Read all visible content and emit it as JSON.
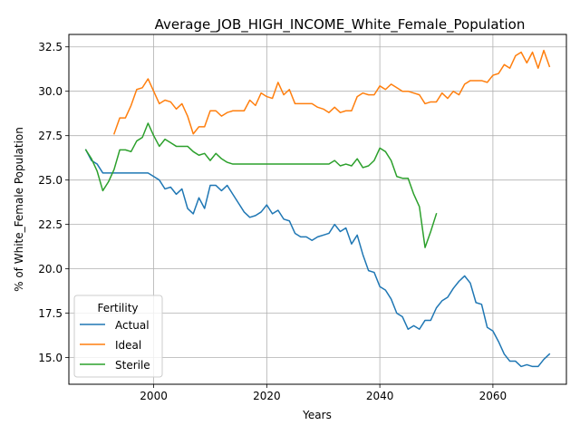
{
  "chart_data": {
    "type": "line",
    "title": "Average_JOB_HIGH_INCOME_White_Female_Population",
    "xlabel": "Years",
    "ylabel": "% of White_Female Population",
    "xlim": [
      1985,
      2073
    ],
    "ylim": [
      13.5,
      33.2
    ],
    "x_ticks": [
      2000,
      2020,
      2040,
      2060
    ],
    "y_ticks": [
      15.0,
      17.5,
      20.0,
      22.5,
      25.0,
      27.5,
      30.0,
      32.5
    ],
    "x_tick_labels": [
      "2000",
      "2020",
      "2040",
      "2060"
    ],
    "y_tick_labels": [
      "15.0",
      "17.5",
      "20.0",
      "22.5",
      "25.0",
      "27.5",
      "30.0",
      "32.5"
    ],
    "grid": true,
    "legend": {
      "title": "Fertility",
      "position": "bottom-left"
    },
    "series": [
      {
        "name": "Actual",
        "color": "#1f77b4",
        "x": [
          1988,
          1989,
          1990,
          1991,
          1992,
          1993,
          1994,
          1995,
          1996,
          1997,
          1998,
          1999,
          2000,
          2001,
          2002,
          2003,
          2004,
          2005,
          2006,
          2007,
          2008,
          2009,
          2010,
          2011,
          2012,
          2013,
          2014,
          2015,
          2016,
          2017,
          2018,
          2019,
          2020,
          2021,
          2022,
          2023,
          2024,
          2025,
          2026,
          2027,
          2028,
          2029,
          2030,
          2031,
          2032,
          2033,
          2034,
          2035,
          2036,
          2037,
          2038,
          2039,
          2040,
          2041,
          2042,
          2043,
          2044,
          2045,
          2046,
          2047,
          2048,
          2049,
          2050,
          2051,
          2052,
          2053,
          2054,
          2055,
          2056,
          2057,
          2058,
          2059,
          2060,
          2061,
          2062,
          2063,
          2064,
          2065,
          2066,
          2067,
          2068,
          2069,
          2070
        ],
        "values": [
          26.7,
          26.1,
          25.9,
          25.4,
          25.4,
          25.4,
          25.4,
          25.4,
          25.4,
          25.4,
          25.4,
          25.4,
          25.2,
          25.0,
          24.5,
          24.6,
          24.2,
          24.5,
          23.4,
          23.1,
          24.0,
          23.4,
          24.7,
          24.7,
          24.4,
          24.7,
          24.2,
          23.7,
          23.2,
          22.9,
          23.0,
          23.2,
          23.6,
          23.1,
          23.3,
          22.8,
          22.7,
          22.0,
          21.8,
          21.8,
          21.6,
          21.8,
          21.9,
          22.0,
          22.5,
          22.1,
          22.3,
          21.4,
          21.9,
          20.8,
          19.9,
          19.8,
          19.0,
          18.8,
          18.3,
          17.5,
          17.3,
          16.6,
          16.8,
          16.6,
          17.1,
          17.1,
          17.8,
          18.2,
          18.4,
          18.9,
          19.3,
          19.6,
          19.2,
          18.1,
          18.0,
          16.7,
          16.5,
          15.9,
          15.2,
          14.8,
          14.8,
          14.5,
          14.6,
          14.5,
          14.5,
          14.9,
          15.2
        ]
      },
      {
        "name": "Ideal",
        "color": "#ff7f0e",
        "x": [
          1993,
          1994,
          1995,
          1996,
          1997,
          1998,
          1999,
          2000,
          2001,
          2002,
          2003,
          2004,
          2005,
          2006,
          2007,
          2008,
          2009,
          2010,
          2011,
          2012,
          2013,
          2014,
          2015,
          2016,
          2017,
          2018,
          2019,
          2020,
          2021,
          2022,
          2023,
          2024,
          2025,
          2026,
          2027,
          2028,
          2029,
          2030,
          2031,
          2032,
          2033,
          2034,
          2035,
          2036,
          2037,
          2038,
          2039,
          2040,
          2041,
          2042,
          2043,
          2044,
          2045,
          2046,
          2047,
          2048,
          2049,
          2050,
          2051,
          2052,
          2053,
          2054,
          2055,
          2056,
          2057,
          2058,
          2059,
          2060,
          2061,
          2062,
          2063,
          2064,
          2065,
          2066,
          2067,
          2068,
          2069,
          2070
        ],
        "values": [
          27.6,
          28.5,
          28.5,
          29.2,
          30.1,
          30.2,
          30.7,
          30.0,
          29.3,
          29.5,
          29.4,
          29.0,
          29.3,
          28.6,
          27.6,
          28.0,
          28.0,
          28.9,
          28.9,
          28.6,
          28.8,
          28.9,
          28.9,
          28.9,
          29.5,
          29.2,
          29.9,
          29.7,
          29.6,
          30.5,
          29.8,
          30.1,
          29.3,
          29.3,
          29.3,
          29.3,
          29.1,
          29.0,
          28.8,
          29.1,
          28.8,
          28.9,
          28.9,
          29.7,
          29.9,
          29.8,
          29.8,
          30.3,
          30.1,
          30.4,
          30.2,
          30.0,
          30.0,
          29.9,
          29.8,
          29.3,
          29.4,
          29.4,
          29.9,
          29.6,
          30.0,
          29.8,
          30.4,
          30.6,
          30.6,
          30.6,
          30.5,
          30.9,
          31.0,
          31.5,
          31.3,
          32.0,
          32.2,
          31.6,
          32.2,
          31.3,
          32.3,
          31.4
        ]
      },
      {
        "name": "Sterile",
        "color": "#2ca02c",
        "x": [
          1988,
          1989,
          1990,
          1991,
          1992,
          1993,
          1994,
          1995,
          1996,
          1997,
          1998,
          1999,
          2000,
          2001,
          2002,
          2003,
          2004,
          2005,
          2006,
          2007,
          2008,
          2009,
          2010,
          2011,
          2012,
          2013,
          2014,
          2015,
          2016,
          2017,
          2018,
          2019,
          2020,
          2021,
          2022,
          2023,
          2024,
          2025,
          2026,
          2027,
          2028,
          2029,
          2030,
          2031,
          2032,
          2033,
          2034,
          2035,
          2036,
          2037,
          2038,
          2039,
          2040,
          2041,
          2042,
          2043,
          2044,
          2045,
          2046,
          2047,
          2048,
          2049,
          2050
        ],
        "values": [
          26.7,
          26.2,
          25.5,
          24.4,
          24.9,
          25.6,
          26.7,
          26.7,
          26.6,
          27.2,
          27.4,
          28.2,
          27.5,
          26.9,
          27.3,
          27.1,
          26.9,
          26.9,
          26.9,
          26.6,
          26.4,
          26.5,
          26.1,
          26.5,
          26.2,
          26.0,
          25.9,
          25.9,
          25.9,
          25.9,
          25.9,
          25.9,
          25.9,
          25.9,
          25.9,
          25.9,
          25.9,
          25.9,
          25.9,
          25.9,
          25.9,
          25.9,
          25.9,
          25.9,
          26.1,
          25.8,
          25.9,
          25.8,
          26.2,
          25.7,
          25.8,
          26.1,
          26.8,
          26.6,
          26.1,
          25.2,
          25.1,
          25.1,
          24.2,
          23.5,
          21.2,
          22.1,
          23.1
        ]
      }
    ]
  }
}
